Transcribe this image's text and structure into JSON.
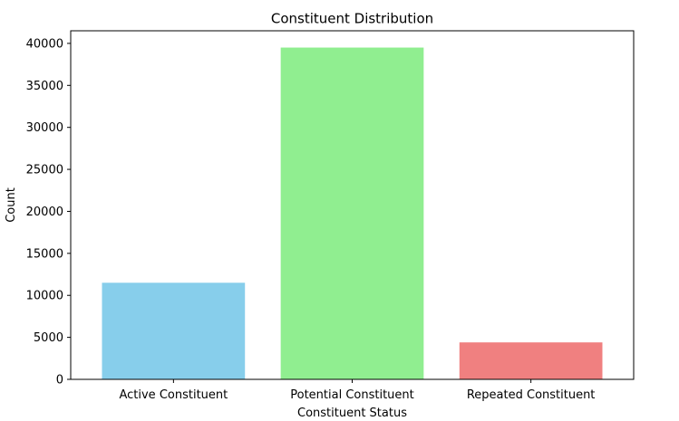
{
  "chart_data": {
    "type": "bar",
    "title": "Constituent Distribution",
    "xlabel": "Constituent Status",
    "ylabel": "Count",
    "categories": [
      "Active Constituent",
      "Potential Constituent",
      "Repeated Constituent"
    ],
    "values": [
      11500,
      39500,
      4400
    ],
    "colors": [
      "#87CEEB",
      "#90EE90",
      "#F08080"
    ],
    "ylim": [
      0,
      41500
    ],
    "yticks": [
      0,
      5000,
      10000,
      15000,
      20000,
      25000,
      30000,
      35000,
      40000
    ],
    "grid": false,
    "legend": "none"
  }
}
